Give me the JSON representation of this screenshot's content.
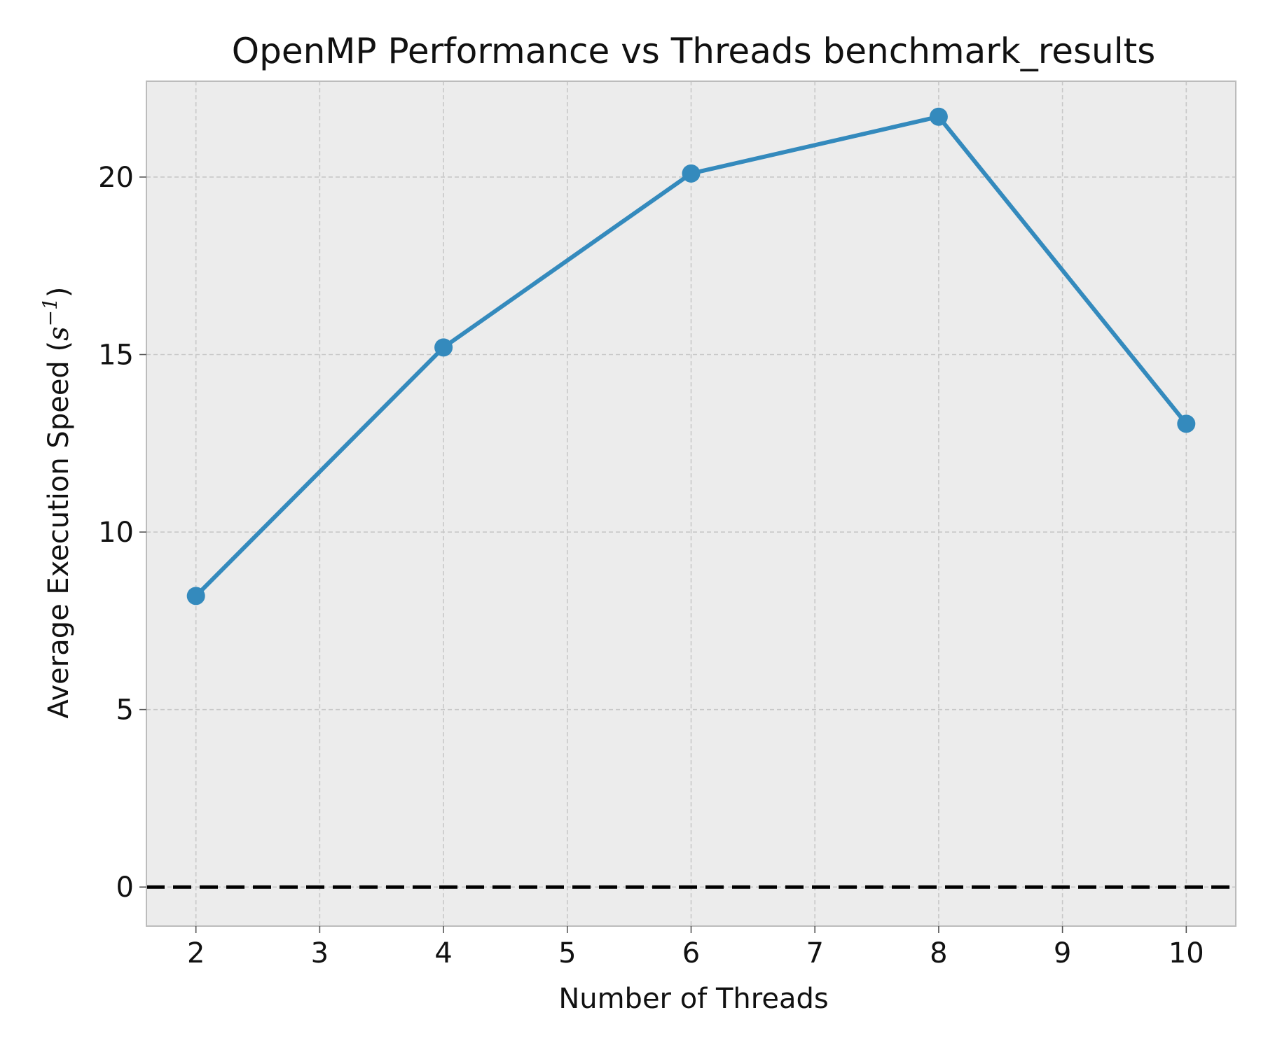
{
  "chart_data": {
    "type": "line",
    "title": "OpenMP Performance vs Threads benchmark_results",
    "xlabel": "Number of Threads",
    "ylabel": {
      "text": "Average Execution Speed (",
      "unit_base": "s",
      "unit_exponent": "−1",
      "close": ")"
    },
    "x": [
      2,
      4,
      6,
      8,
      10
    ],
    "series": [
      {
        "values": [
          8.2,
          15.2,
          20.1,
          21.7,
          13.05
        ]
      }
    ],
    "xlim": [
      1.6,
      10.4
    ],
    "ylim": [
      -1.1,
      22.7
    ],
    "xticks": [
      2,
      3,
      4,
      5,
      6,
      7,
      8,
      9,
      10
    ],
    "yticks": [
      0,
      5,
      10,
      15,
      20
    ],
    "reference_line": {
      "y": 0,
      "style": "dashed",
      "color": "#000000"
    },
    "grid": true,
    "grid_style": "dashed",
    "colors": {
      "series": "#348abd",
      "plot_background": "#ececec",
      "grid": "#c8c8c8",
      "frame": "#bcbcbc"
    }
  }
}
